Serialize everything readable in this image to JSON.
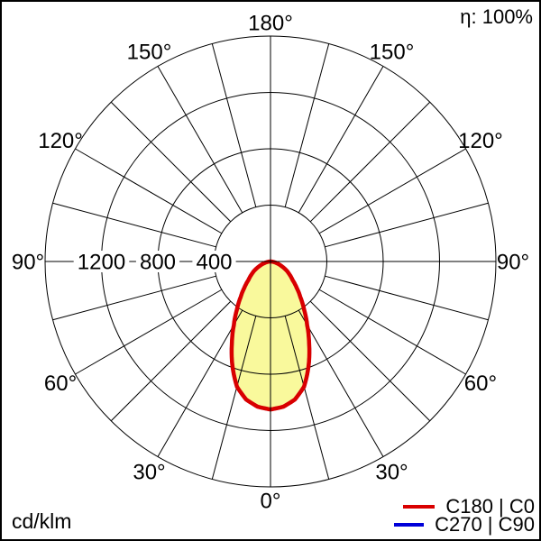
{
  "header": {
    "efficiency": "η: 100%"
  },
  "footer": {
    "unit": "cd/klm"
  },
  "legend": {
    "items": [
      {
        "label": "C180 | C0",
        "color": "#d90000"
      },
      {
        "label": "C270 | C90",
        "color": "#0000d9"
      }
    ]
  },
  "chart_data": {
    "type": "polar",
    "subtype": "luminous-intensity-distribution",
    "unit": "cd/klm",
    "efficiency": "η: 100%",
    "angle_ticks_deg": [
      0,
      30,
      60,
      90,
      120,
      150,
      180
    ],
    "angle_tick_labels": [
      "0°",
      "30°",
      "60°",
      "90°",
      "120°",
      "150°",
      "180°"
    ],
    "spoke_step_deg": 15,
    "radial_ticks": [
      400,
      800,
      1200
    ],
    "radial_tick_labels": [
      "400",
      "800",
      "1200"
    ],
    "radial_axis_max": 1600,
    "grid_color": "#000000",
    "fill_color": "#f9f99c",
    "series": [
      {
        "name": "C180 | C0",
        "color": "#d90000",
        "symmetric": true,
        "gamma_deg": [
          0,
          5,
          10,
          15,
          20,
          25,
          30,
          35,
          40,
          45,
          50,
          55,
          60,
          65,
          70,
          75,
          80,
          85,
          90
        ],
        "intensity_cd_per_klm": [
          1050,
          1035,
          995,
          920,
          790,
          650,
          520,
          415,
          330,
          262,
          205,
          168,
          135,
          100,
          70,
          46,
          26,
          10,
          0
        ]
      },
      {
        "name": "C270 | C90",
        "color": "#0000d9",
        "symmetric": true,
        "gamma_deg": [
          0,
          5,
          10,
          15,
          20,
          25,
          30,
          35,
          40,
          45,
          50,
          55,
          60,
          65,
          70,
          75,
          80,
          85,
          90
        ],
        "intensity_cd_per_klm": [
          1050,
          1035,
          995,
          920,
          790,
          650,
          520,
          415,
          330,
          262,
          205,
          168,
          135,
          100,
          70,
          46,
          26,
          10,
          0
        ]
      }
    ]
  }
}
